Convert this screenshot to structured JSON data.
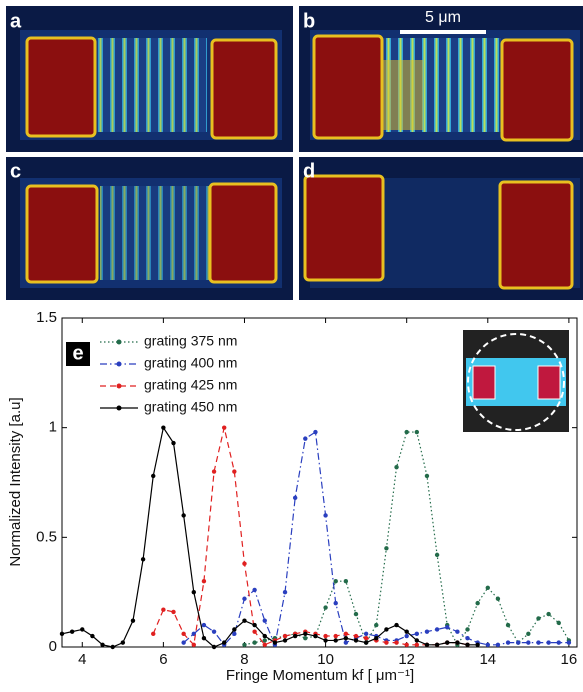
{
  "images": {
    "labels": [
      "a",
      "b",
      "c",
      "d"
    ],
    "scale_bar": "5 μm"
  },
  "chart_data": {
    "type": "line",
    "panel_label": "e",
    "xlabel": "Fringe Momentum kf [ μm⁻¹]",
    "ylabel": "Normalized Intensity [a.u]",
    "xlim": [
      3.5,
      16.2
    ],
    "ylim": [
      0,
      1.5
    ],
    "xticks": [
      4,
      6,
      8,
      10,
      12,
      14,
      16
    ],
    "yticks": [
      0,
      0.5,
      1,
      1.5
    ],
    "x": [
      3.5,
      3.75,
      4,
      4.25,
      4.5,
      4.75,
      5,
      5.25,
      5.5,
      5.75,
      6,
      6.25,
      6.5,
      6.75,
      7,
      7.25,
      7.5,
      7.75,
      8,
      8.25,
      8.5,
      8.75,
      9,
      9.25,
      9.5,
      9.75,
      10,
      10.25,
      10.5,
      10.75,
      11,
      11.25,
      11.5,
      11.75,
      12,
      12.25,
      12.5,
      12.75,
      13,
      13.25,
      13.5,
      13.75,
      14,
      14.25,
      14.5,
      14.75,
      15,
      15.25,
      15.5,
      15.75,
      16
    ],
    "series": [
      {
        "name": "grating 375 nm",
        "color": "#236b4a",
        "linestyle": "dotted",
        "values": [
          null,
          null,
          null,
          null,
          null,
          null,
          null,
          null,
          null,
          null,
          null,
          null,
          null,
          null,
          null,
          null,
          null,
          null,
          0.01,
          0.02,
          0.03,
          0.04,
          0.05,
          0.06,
          0.04,
          0.05,
          0.18,
          0.3,
          0.3,
          0.15,
          0.02,
          0.1,
          0.45,
          0.82,
          0.98,
          0.98,
          0.78,
          0.42,
          0.1,
          0.01,
          0.08,
          0.2,
          0.27,
          0.22,
          0.1,
          0.02,
          0.06,
          0.13,
          0.15,
          0.11,
          0.03
        ]
      },
      {
        "name": "grating 400 nm",
        "color": "#2a3fbf",
        "linestyle": "dashdot",
        "values": [
          null,
          null,
          null,
          null,
          null,
          null,
          null,
          null,
          null,
          null,
          null,
          null,
          0.02,
          0.06,
          0.1,
          0.07,
          0.01,
          0.06,
          0.22,
          0.26,
          0.12,
          0.01,
          0.25,
          0.68,
          0.95,
          0.98,
          0.6,
          0.2,
          0.02,
          0.04,
          0.06,
          0.05,
          0.03,
          0.03,
          0.05,
          0.06,
          0.07,
          0.08,
          0.09,
          0.07,
          0.04,
          0.02,
          0.01,
          0.01,
          0.02,
          0.02,
          0.02,
          0.02,
          0.02,
          0.02,
          0.02
        ]
      },
      {
        "name": "grating 425 nm",
        "color": "#e02020",
        "linestyle": "dashed",
        "values": [
          null,
          null,
          null,
          null,
          null,
          null,
          null,
          null,
          null,
          0.06,
          0.17,
          0.16,
          0.06,
          0.01,
          0.3,
          0.8,
          1.0,
          0.8,
          0.38,
          0.07,
          0.01,
          0.03,
          0.05,
          0.06,
          0.07,
          0.06,
          0.05,
          0.05,
          0.06,
          0.05,
          0.04,
          0.03,
          0.02,
          0.02,
          0.01,
          0.01,
          0.01,
          0.01,
          0.02,
          0.02,
          0.01,
          null,
          null,
          null,
          null,
          null,
          null,
          null,
          null,
          null,
          null
        ]
      },
      {
        "name": "grating 450 nm",
        "color": "#000000",
        "linestyle": "solid",
        "values": [
          0.06,
          0.07,
          0.08,
          0.05,
          0.01,
          0,
          0.02,
          0.12,
          0.4,
          0.78,
          1.0,
          0.93,
          0.6,
          0.25,
          0.04,
          0,
          0.02,
          0.08,
          0.12,
          0.1,
          0.05,
          0.02,
          0.03,
          0.05,
          0.06,
          0.05,
          0.03,
          0.03,
          0.04,
          0.03,
          0.02,
          0.04,
          0.08,
          0.1,
          0.07,
          0.03,
          0.01,
          0.01,
          0.02,
          0.02,
          0.01,
          0.01,
          null,
          null,
          null,
          null,
          null,
          null,
          null,
          null,
          null
        ]
      }
    ]
  }
}
